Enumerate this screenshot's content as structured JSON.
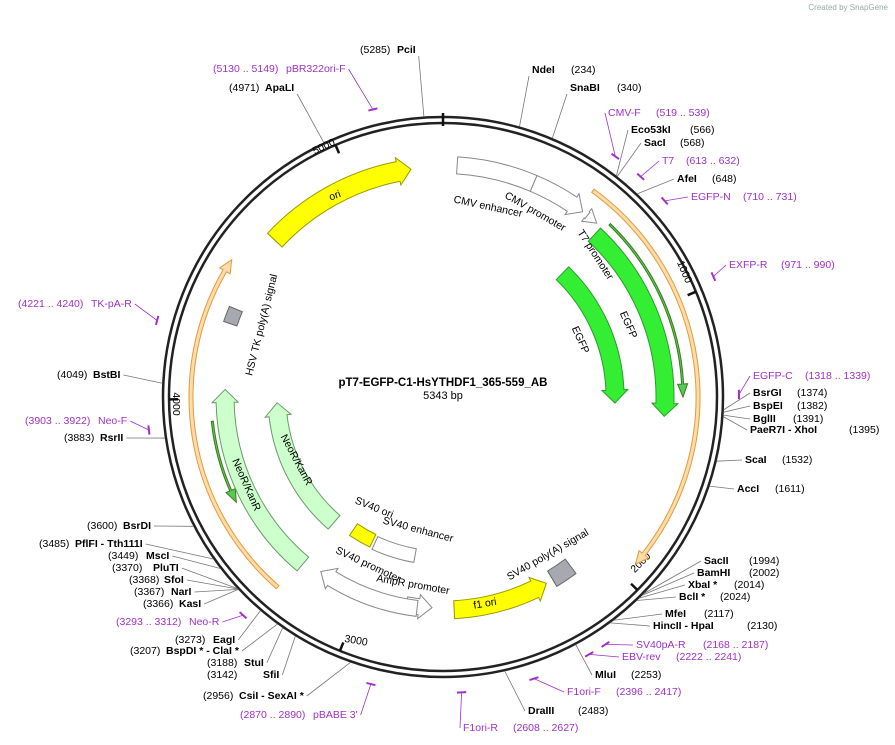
{
  "header": {
    "brand": "Created by SnapGene"
  },
  "map": {
    "name": "pT7-EGFP-C1-HsYTHDF1_365-559_AB",
    "length": "5343 bp",
    "ticks": [
      "1000",
      "2000",
      "3000",
      "4000",
      "5000"
    ]
  },
  "features": [
    "ori",
    "CMV enhancer",
    "CMV promoter",
    "T7 promoter",
    "EGFP",
    "EGFP",
    "SV40 poly(A) signal",
    "f1 ori",
    "AmpR promoter",
    "SV40 promoter",
    "SV40 enhancer",
    "SV40 ori",
    "NeoR/KanR",
    "NeoR/KanR",
    "HSV TK poly(A) signal"
  ],
  "sites": [
    {
      "name": "PciI",
      "position": "(5285)"
    },
    {
      "name": "NdeI",
      "position": "(234)"
    },
    {
      "name": "SnaBI",
      "position": "(340)"
    },
    {
      "name": "Eco53kI",
      "position": "(566)"
    },
    {
      "name": "SacI",
      "position": "(568)"
    },
    {
      "name": "AfeI",
      "position": "(648)"
    },
    {
      "name": "BsrGI",
      "position": "(1374)"
    },
    {
      "name": "BspEI",
      "position": "(1382)"
    },
    {
      "name": "BglII",
      "position": "(1391)"
    },
    {
      "name": "PaeR7I  - XhoI",
      "position": "(1395)"
    },
    {
      "name": "ScaI",
      "position": "(1532)"
    },
    {
      "name": "AccI",
      "position": "(1611)"
    },
    {
      "name": "SacII",
      "position": "(1994)"
    },
    {
      "name": "BamHI",
      "position": "(2002)"
    },
    {
      "name": "XbaI *",
      "position": "(2014)"
    },
    {
      "name": "BclI *",
      "position": "(2024)"
    },
    {
      "name": "MfeI",
      "position": "(2117)"
    },
    {
      "name": "HincII  - HpaI",
      "position": "(2130)"
    },
    {
      "name": "MluI",
      "position": "(2253)"
    },
    {
      "name": "DraIII",
      "position": "(2483)"
    },
    {
      "name": "CsiI  - SexAI *",
      "position": "(2956)"
    },
    {
      "name": "SfiI",
      "position": "(3142)"
    },
    {
      "name": "StuI",
      "position": "(3188)"
    },
    {
      "name": "BspDI *  - ClaI *",
      "position": "(3207)"
    },
    {
      "name": "EagI",
      "position": "(3273)"
    },
    {
      "name": "KasI",
      "position": "(3366)"
    },
    {
      "name": "NarI",
      "position": "(3367)"
    },
    {
      "name": "SfoI",
      "position": "(3368)"
    },
    {
      "name": "PluTI",
      "position": "(3370)"
    },
    {
      "name": "MscI",
      "position": "(3449)"
    },
    {
      "name": "PflFI  - Tth111I",
      "position": "(3485)"
    },
    {
      "name": "BsrDI",
      "position": "(3600)"
    },
    {
      "name": "RsrII",
      "position": "(3883)"
    },
    {
      "name": "BstBI",
      "position": "(4049)"
    },
    {
      "name": "ApaLI",
      "position": "(4971)"
    }
  ],
  "primers": [
    {
      "name": "pBR322ori-F",
      "range": "(5130 .. 5149)"
    },
    {
      "name": "CMV-F",
      "range": "(519 .. 539)"
    },
    {
      "name": "T7",
      "range": "(613 .. 632)"
    },
    {
      "name": "EGFP-N",
      "range": "(710 .. 731)"
    },
    {
      "name": "EXFP-R",
      "range": "(971 .. 990)"
    },
    {
      "name": "EGFP-C",
      "range": "(1318 .. 1339)"
    },
    {
      "name": "SV40pA-R",
      "range": "(2168 .. 2187)"
    },
    {
      "name": "EBV-rev",
      "range": "(2222 .. 2241)"
    },
    {
      "name": "F1ori-F",
      "range": "(2396 .. 2417)"
    },
    {
      "name": "F1ori-R",
      "range": "(2608 .. 2627)"
    },
    {
      "name": "pBABE 3'",
      "range": "(2870 .. 2890)"
    },
    {
      "name": "Neo-R",
      "range": "(3293 .. 3312)"
    },
    {
      "name": "Neo-F",
      "range": "(3903 .. 3922)"
    },
    {
      "name": "TK-pA-R",
      "range": "(4221 .. 4240)"
    }
  ]
}
